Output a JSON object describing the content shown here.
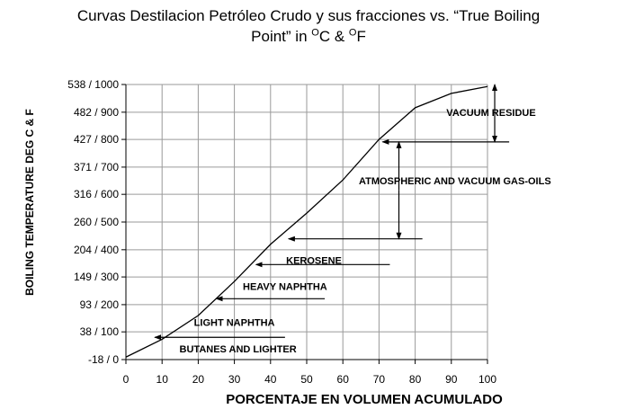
{
  "chart_data": {
    "type": "line",
    "title_parts": [
      "Curvas Destilacion Petróleo Crudo y sus fracciones vs. “True Boiling",
      "Point” in ",
      "O",
      "C & ",
      "O",
      "F"
    ],
    "xlabel": "PORCENTAJE EN  VOLUMEN ACUMULADO",
    "ylabel": "BOILING TEMPERATURE DEG C &  F",
    "xlim": [
      0,
      100
    ],
    "ylim": [
      -18,
      538
    ],
    "grid": true,
    "x_ticks": [
      "0",
      "10",
      "20",
      "30",
      "40",
      "50",
      "60",
      "70",
      "80",
      "90",
      "100"
    ],
    "y_ticks": [
      {
        "value": -18,
        "label": "-18 / 0"
      },
      {
        "value": 38,
        "label": "38 / 100"
      },
      {
        "value": 93,
        "label": "93 / 200"
      },
      {
        "value": 149,
        "label": "149 / 300"
      },
      {
        "value": 204,
        "label": "204 / 400"
      },
      {
        "value": 260,
        "label": "260 / 500"
      },
      {
        "value": 316,
        "label": "316 / 600"
      },
      {
        "value": 371,
        "label": "371 / 700"
      },
      {
        "value": 427,
        "label": "427 / 800"
      },
      {
        "value": 482,
        "label": "482 / 900"
      },
      {
        "value": 538,
        "label": "538 / 1000"
      }
    ],
    "series": [
      {
        "x": [
          0,
          10,
          20,
          30,
          40,
          50,
          60,
          70,
          80,
          90,
          100
        ],
        "y": [
          -13,
          23,
          71,
          140,
          215,
          278,
          345,
          427,
          491,
          520,
          534
        ]
      }
    ],
    "annotations": [
      {
        "label": "BUTANES AND LIGHTER",
        "label_x": 31,
        "label_y": 4,
        "arrow_tip": [
          8,
          27
        ],
        "arrow_tail": [
          44,
          27
        ]
      },
      {
        "label": "LIGHT NAPHTHA",
        "label_x": 30,
        "label_y": 57,
        "arrow_tip": [
          25,
          105
        ],
        "arrow_tail": [
          55,
          105
        ]
      },
      {
        "label": "HEAVY NAPHTHA",
        "label_x": 44,
        "label_y": 130,
        "arrow_tip": [
          36,
          174
        ],
        "arrow_tail": [
          73,
          174
        ]
      },
      {
        "label": "KEROSENE",
        "label_x": 52,
        "label_y": 183,
        "arrow_tip": [
          45,
          226
        ],
        "arrow_tail": [
          82,
          226
        ]
      },
      {
        "label": "ATMOSPHERIC AND VACUUM GAS-OILS",
        "label_x": 91,
        "label_y": 344,
        "arrow_tip": [
          71,
          422
        ],
        "arrow_tail": [
          106,
          422
        ],
        "bracket_x": 75.5,
        "bracket_y": [
          226,
          422
        ]
      },
      {
        "label": "VACUUM RESIDUE",
        "label_x": 101,
        "label_y": 482,
        "bracket_x": 102,
        "bracket_y": [
          422,
          538
        ]
      }
    ]
  }
}
